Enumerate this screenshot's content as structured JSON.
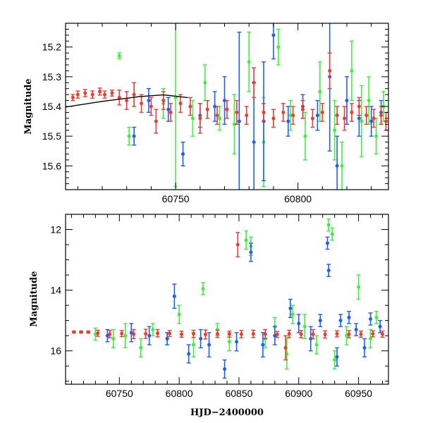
{
  "colors": {
    "red": "#f03a2e",
    "green": "#3ef03e",
    "blue": "#1e5ef5",
    "model": "#000000"
  },
  "chart_data": [
    {
      "type": "scatter",
      "panel": "top",
      "title": "",
      "xlabel": "",
      "ylabel": "Magnitude",
      "xlim": [
        60705,
        60837
      ],
      "ylim": [
        15.68,
        15.12
      ],
      "y_inverted": true,
      "x_ticks": [
        60750,
        60800
      ],
      "y_ticks": [
        15.2,
        15.3,
        15.4,
        15.5,
        15.6
      ],
      "x_tick_labels": [
        "60750",
        "60800"
      ],
      "y_tick_labels": [
        "15.2",
        "15.3",
        "15.4",
        "15.5",
        "15.6"
      ],
      "grid": false,
      "series": [
        {
          "color": "red",
          "points": [
            [
              60708,
              15.37,
              0.01
            ],
            [
              60710,
              15.36,
              0.012
            ],
            [
              60713,
              15.355,
              0.012
            ],
            [
              60716,
              15.36,
              0.012
            ],
            [
              60719,
              15.35,
              0.012
            ],
            [
              60721,
              15.36,
              0.012
            ],
            [
              60724,
              15.355,
              0.01
            ],
            [
              60727,
              15.37,
              0.025
            ],
            [
              60730,
              15.38,
              0.03
            ],
            [
              60733,
              15.36,
              0.04
            ],
            [
              60736,
              15.39,
              0.03
            ],
            [
              60740,
              15.4,
              0.03
            ],
            [
              60742,
              15.45,
              0.04
            ],
            [
              60745,
              15.38,
              0.03
            ],
            [
              60748,
              15.42,
              0.03
            ],
            [
              60752,
              15.39,
              0.03
            ],
            [
              60756,
              15.4,
              0.03
            ],
            [
              60760,
              15.44,
              0.05
            ],
            [
              60763,
              15.41,
              0.03
            ],
            [
              60767,
              15.43,
              0.03
            ],
            [
              60771,
              15.41,
              0.03
            ],
            [
              60775,
              15.42,
              0.04
            ],
            [
              60779,
              15.43,
              0.03
            ],
            [
              60782,
              15.32,
              0.05
            ],
            [
              60786,
              15.42,
              0.03
            ],
            [
              60790,
              15.44,
              0.03
            ],
            [
              60794,
              15.42,
              0.03
            ],
            [
              60798,
              15.43,
              0.03
            ],
            [
              60802,
              15.41,
              0.03
            ],
            [
              60806,
              15.44,
              0.03
            ],
            [
              60810,
              15.42,
              0.03
            ],
            [
              60813,
              15.28,
              0.06
            ],
            [
              60816,
              15.43,
              0.03
            ],
            [
              60819,
              15.44,
              0.04
            ],
            [
              60822,
              15.42,
              0.03
            ],
            [
              60825,
              15.4,
              0.03
            ],
            [
              60828,
              15.43,
              0.03
            ],
            [
              60831,
              15.44,
              0.03
            ],
            [
              60834,
              15.43,
              0.03
            ],
            [
              60836,
              15.45,
              0.03
            ]
          ]
        },
        {
          "color": "green",
          "points": [
            [
              60727,
              15.23,
              0.01
            ],
            [
              60731,
              15.5,
              0.03
            ],
            [
              60745,
              15.39,
              0.05
            ],
            [
              60750,
              15.37,
              0.3
            ],
            [
              60757,
              15.44,
              0.06
            ],
            [
              60762,
              15.32,
              0.06
            ],
            [
              60768,
              15.44,
              0.04
            ],
            [
              60774,
              15.46,
              0.1
            ],
            [
              60780,
              15.25,
              0.1
            ],
            [
              60786,
              15.52,
              0.15
            ],
            [
              60792,
              15.2,
              0.06
            ],
            [
              60797,
              15.43,
              0.05
            ],
            [
              60803,
              15.5,
              0.08
            ],
            [
              60809,
              15.35,
              0.1
            ],
            [
              60815,
              15.48,
              0.1
            ],
            [
              60818,
              15.6,
              0.08
            ],
            [
              60822,
              15.28,
              0.1
            ],
            [
              60826,
              15.45,
              0.12
            ],
            [
              60829,
              15.38,
              0.08
            ],
            [
              60832,
              15.5,
              0.06
            ],
            [
              60835,
              15.4,
              0.05
            ]
          ]
        },
        {
          "color": "blue",
          "points": [
            [
              60733,
              15.5,
              0.03
            ],
            [
              60739,
              15.38,
              0.04
            ],
            [
              60747,
              15.41,
              0.04
            ],
            [
              60753,
              15.56,
              0.04
            ],
            [
              60760,
              15.43,
              0.04
            ],
            [
              60766,
              15.4,
              0.05
            ],
            [
              60770,
              15.38,
              0.08
            ],
            [
              60776,
              15.45,
              0.3
            ],
            [
              60782,
              15.52,
              0.2
            ],
            [
              60786,
              15.45,
              0.2
            ],
            [
              60790,
              15.16,
              0.08
            ],
            [
              60796,
              15.45,
              0.05
            ],
            [
              60802,
              15.4,
              0.04
            ],
            [
              60808,
              15.43,
              0.05
            ],
            [
              60813,
              15.3,
              0.25
            ],
            [
              60816,
              15.6,
              0.1
            ],
            [
              60820,
              15.38,
              0.08
            ],
            [
              60825,
              15.44,
              0.06
            ],
            [
              60830,
              15.45,
              0.05
            ],
            [
              60834,
              15.42,
              0.04
            ]
          ]
        }
      ],
      "model_curve": [
        [
          60705,
          15.402
        ],
        [
          60720,
          15.383
        ],
        [
          60735,
          15.367
        ],
        [
          60745,
          15.361
        ],
        [
          60755,
          15.37
        ]
      ]
    },
    {
      "type": "scatter",
      "panel": "bottom",
      "title": "",
      "xlabel": "HJD−2400000",
      "ylabel": "Magnitude",
      "xlim": [
        60705,
        60975
      ],
      "ylim": [
        17.1,
        11.5
      ],
      "y_inverted": true,
      "x_ticks": [
        60750,
        60800,
        60850,
        60900,
        60950
      ],
      "y_ticks": [
        12,
        14,
        16
      ],
      "x_tick_labels": [
        "60750",
        "60800",
        "60850",
        "60900",
        "60950"
      ],
      "y_tick_labels": [
        "12",
        "14",
        "16"
      ],
      "grid": false,
      "series": [
        {
          "color": "red",
          "points": [
            [
              60712,
              15.38,
              0.03
            ],
            [
              60718,
              15.38,
              0.03
            ],
            [
              60724,
              15.38,
              0.03
            ],
            [
              60732,
              15.42,
              0.1
            ],
            [
              60742,
              15.45,
              0.12
            ],
            [
              60752,
              15.43,
              0.1
            ],
            [
              60762,
              15.45,
              0.15
            ],
            [
              60772,
              15.44,
              0.15
            ],
            [
              60782,
              15.42,
              0.12
            ],
            [
              60792,
              15.43,
              0.1
            ],
            [
              60802,
              15.45,
              0.1
            ],
            [
              60812,
              15.44,
              0.12
            ],
            [
              60822,
              15.46,
              0.15
            ],
            [
              60832,
              15.44,
              0.12
            ],
            [
              60842,
              15.45,
              0.1
            ],
            [
              60849,
              12.5,
              0.4
            ],
            [
              60852,
              15.45,
              0.12
            ],
            [
              60862,
              15.44,
              0.12
            ],
            [
              60872,
              15.45,
              0.15
            ],
            [
              60882,
              15.46,
              0.1
            ],
            [
              60889,
              15.9,
              0.4
            ],
            [
              60892,
              15.44,
              0.12
            ],
            [
              60902,
              15.45,
              0.12
            ],
            [
              60912,
              15.45,
              0.15
            ],
            [
              60922,
              15.46,
              0.12
            ],
            [
              60932,
              15.44,
              0.1
            ],
            [
              60942,
              15.45,
              0.12
            ],
            [
              60952,
              15.45,
              0.1
            ],
            [
              60962,
              15.44,
              0.1
            ],
            [
              60970,
              15.45,
              0.1
            ]
          ]
        },
        {
          "color": "green",
          "points": [
            [
              60730,
              15.45,
              0.2
            ],
            [
              60745,
              15.6,
              0.3
            ],
            [
              60755,
              15.5,
              0.4
            ],
            [
              60768,
              15.9,
              0.3
            ],
            [
              60778,
              15.3,
              0.2
            ],
            [
              60790,
              15.6,
              0.2
            ],
            [
              60800,
              14.8,
              0.3
            ],
            [
              60812,
              15.8,
              0.4
            ],
            [
              60820,
              13.95,
              0.2
            ],
            [
              60832,
              15.3,
              0.2
            ],
            [
              60842,
              15.7,
              0.3
            ],
            [
              60856,
              12.35,
              0.3
            ],
            [
              60860,
              12.55,
              0.3
            ],
            [
              60872,
              15.6,
              0.3
            ],
            [
              60880,
              15.2,
              0.3
            ],
            [
              60890,
              16.1,
              0.5
            ],
            [
              60895,
              14.8,
              0.3
            ],
            [
              60905,
              15.2,
              0.4
            ],
            [
              60915,
              15.8,
              0.3
            ],
            [
              60925,
              11.85,
              0.2
            ],
            [
              60928,
              12.15,
              0.2
            ],
            [
              60930,
              16.3,
              0.3
            ],
            [
              60940,
              15.5,
              0.3
            ],
            [
              60950,
              13.9,
              0.4
            ],
            [
              60960,
              15.6,
              0.3
            ],
            [
              60965,
              14.9,
              0.2
            ]
          ]
        },
        {
          "color": "blue",
          "points": [
            [
              60740,
              15.5,
              0.2
            ],
            [
              60760,
              15.4,
              0.3
            ],
            [
              60775,
              15.5,
              0.3
            ],
            [
              60790,
              15.6,
              0.2
            ],
            [
              60796,
              14.2,
              0.4
            ],
            [
              60808,
              16.1,
              0.3
            ],
            [
              60818,
              15.6,
              0.3
            ],
            [
              60825,
              15.8,
              0.4
            ],
            [
              60838,
              16.6,
              0.3
            ],
            [
              60848,
              15.7,
              0.3
            ],
            [
              60860,
              12.75,
              0.3
            ],
            [
              60870,
              15.8,
              0.4
            ],
            [
              60880,
              15.5,
              0.3
            ],
            [
              60893,
              14.6,
              0.3
            ],
            [
              60900,
              15.1,
              0.3
            ],
            [
              60910,
              15.6,
              0.4
            ],
            [
              60918,
              15.0,
              0.2
            ],
            [
              60924,
              12.45,
              0.2
            ],
            [
              60925,
              13.35,
              0.2
            ],
            [
              60932,
              16.2,
              0.3
            ],
            [
              60935,
              15.0,
              0.2
            ],
            [
              60942,
              14.9,
              0.2
            ],
            [
              60948,
              15.3,
              0.2
            ],
            [
              60955,
              15.9,
              0.3
            ],
            [
              60960,
              14.95,
              0.2
            ],
            [
              60968,
              15.2,
              0.2
            ]
          ]
        }
      ],
      "model_curve": []
    }
  ]
}
